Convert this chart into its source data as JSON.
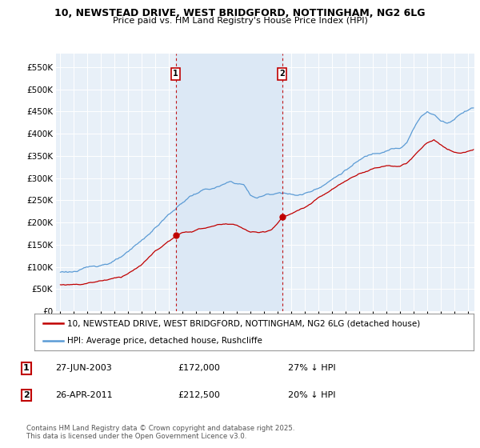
{
  "title_line1": "10, NEWSTEAD DRIVE, WEST BRIDGFORD, NOTTINGHAM, NG2 6LG",
  "title_line2": "Price paid vs. HM Land Registry's House Price Index (HPI)",
  "ytick_values": [
    0,
    50000,
    100000,
    150000,
    200000,
    250000,
    300000,
    350000,
    400000,
    450000,
    500000,
    550000
  ],
  "ylim": [
    0,
    580000
  ],
  "xlim_start": 1994.7,
  "xlim_end": 2025.5,
  "hpi_color": "#5b9bd5",
  "price_color": "#c00000",
  "marker1_x": 2003.49,
  "marker1_y": 172000,
  "marker1_label": "1",
  "marker2_x": 2011.32,
  "marker2_y": 212500,
  "marker2_label": "2",
  "marker_top_y": 535000,
  "vline1_x": 2003.49,
  "vline2_x": 2011.32,
  "legend_line1": "10, NEWSTEAD DRIVE, WEST BRIDGFORD, NOTTINGHAM, NG2 6LG (detached house)",
  "legend_line2": "HPI: Average price, detached house, Rushcliffe",
  "note1_label": "1",
  "note1_date": "27-JUN-2003",
  "note1_price": "£172,000",
  "note1_hpi": "27% ↓ HPI",
  "note2_label": "2",
  "note2_date": "26-APR-2011",
  "note2_price": "£212,500",
  "note2_hpi": "20% ↓ HPI",
  "footer": "Contains HM Land Registry data © Crown copyright and database right 2025.\nThis data is licensed under the Open Government Licence v3.0.",
  "background_color": "#ffffff",
  "plot_bg_color": "#e8f0f8",
  "grid_color": "#ffffff",
  "span_color": "#dce8f5"
}
